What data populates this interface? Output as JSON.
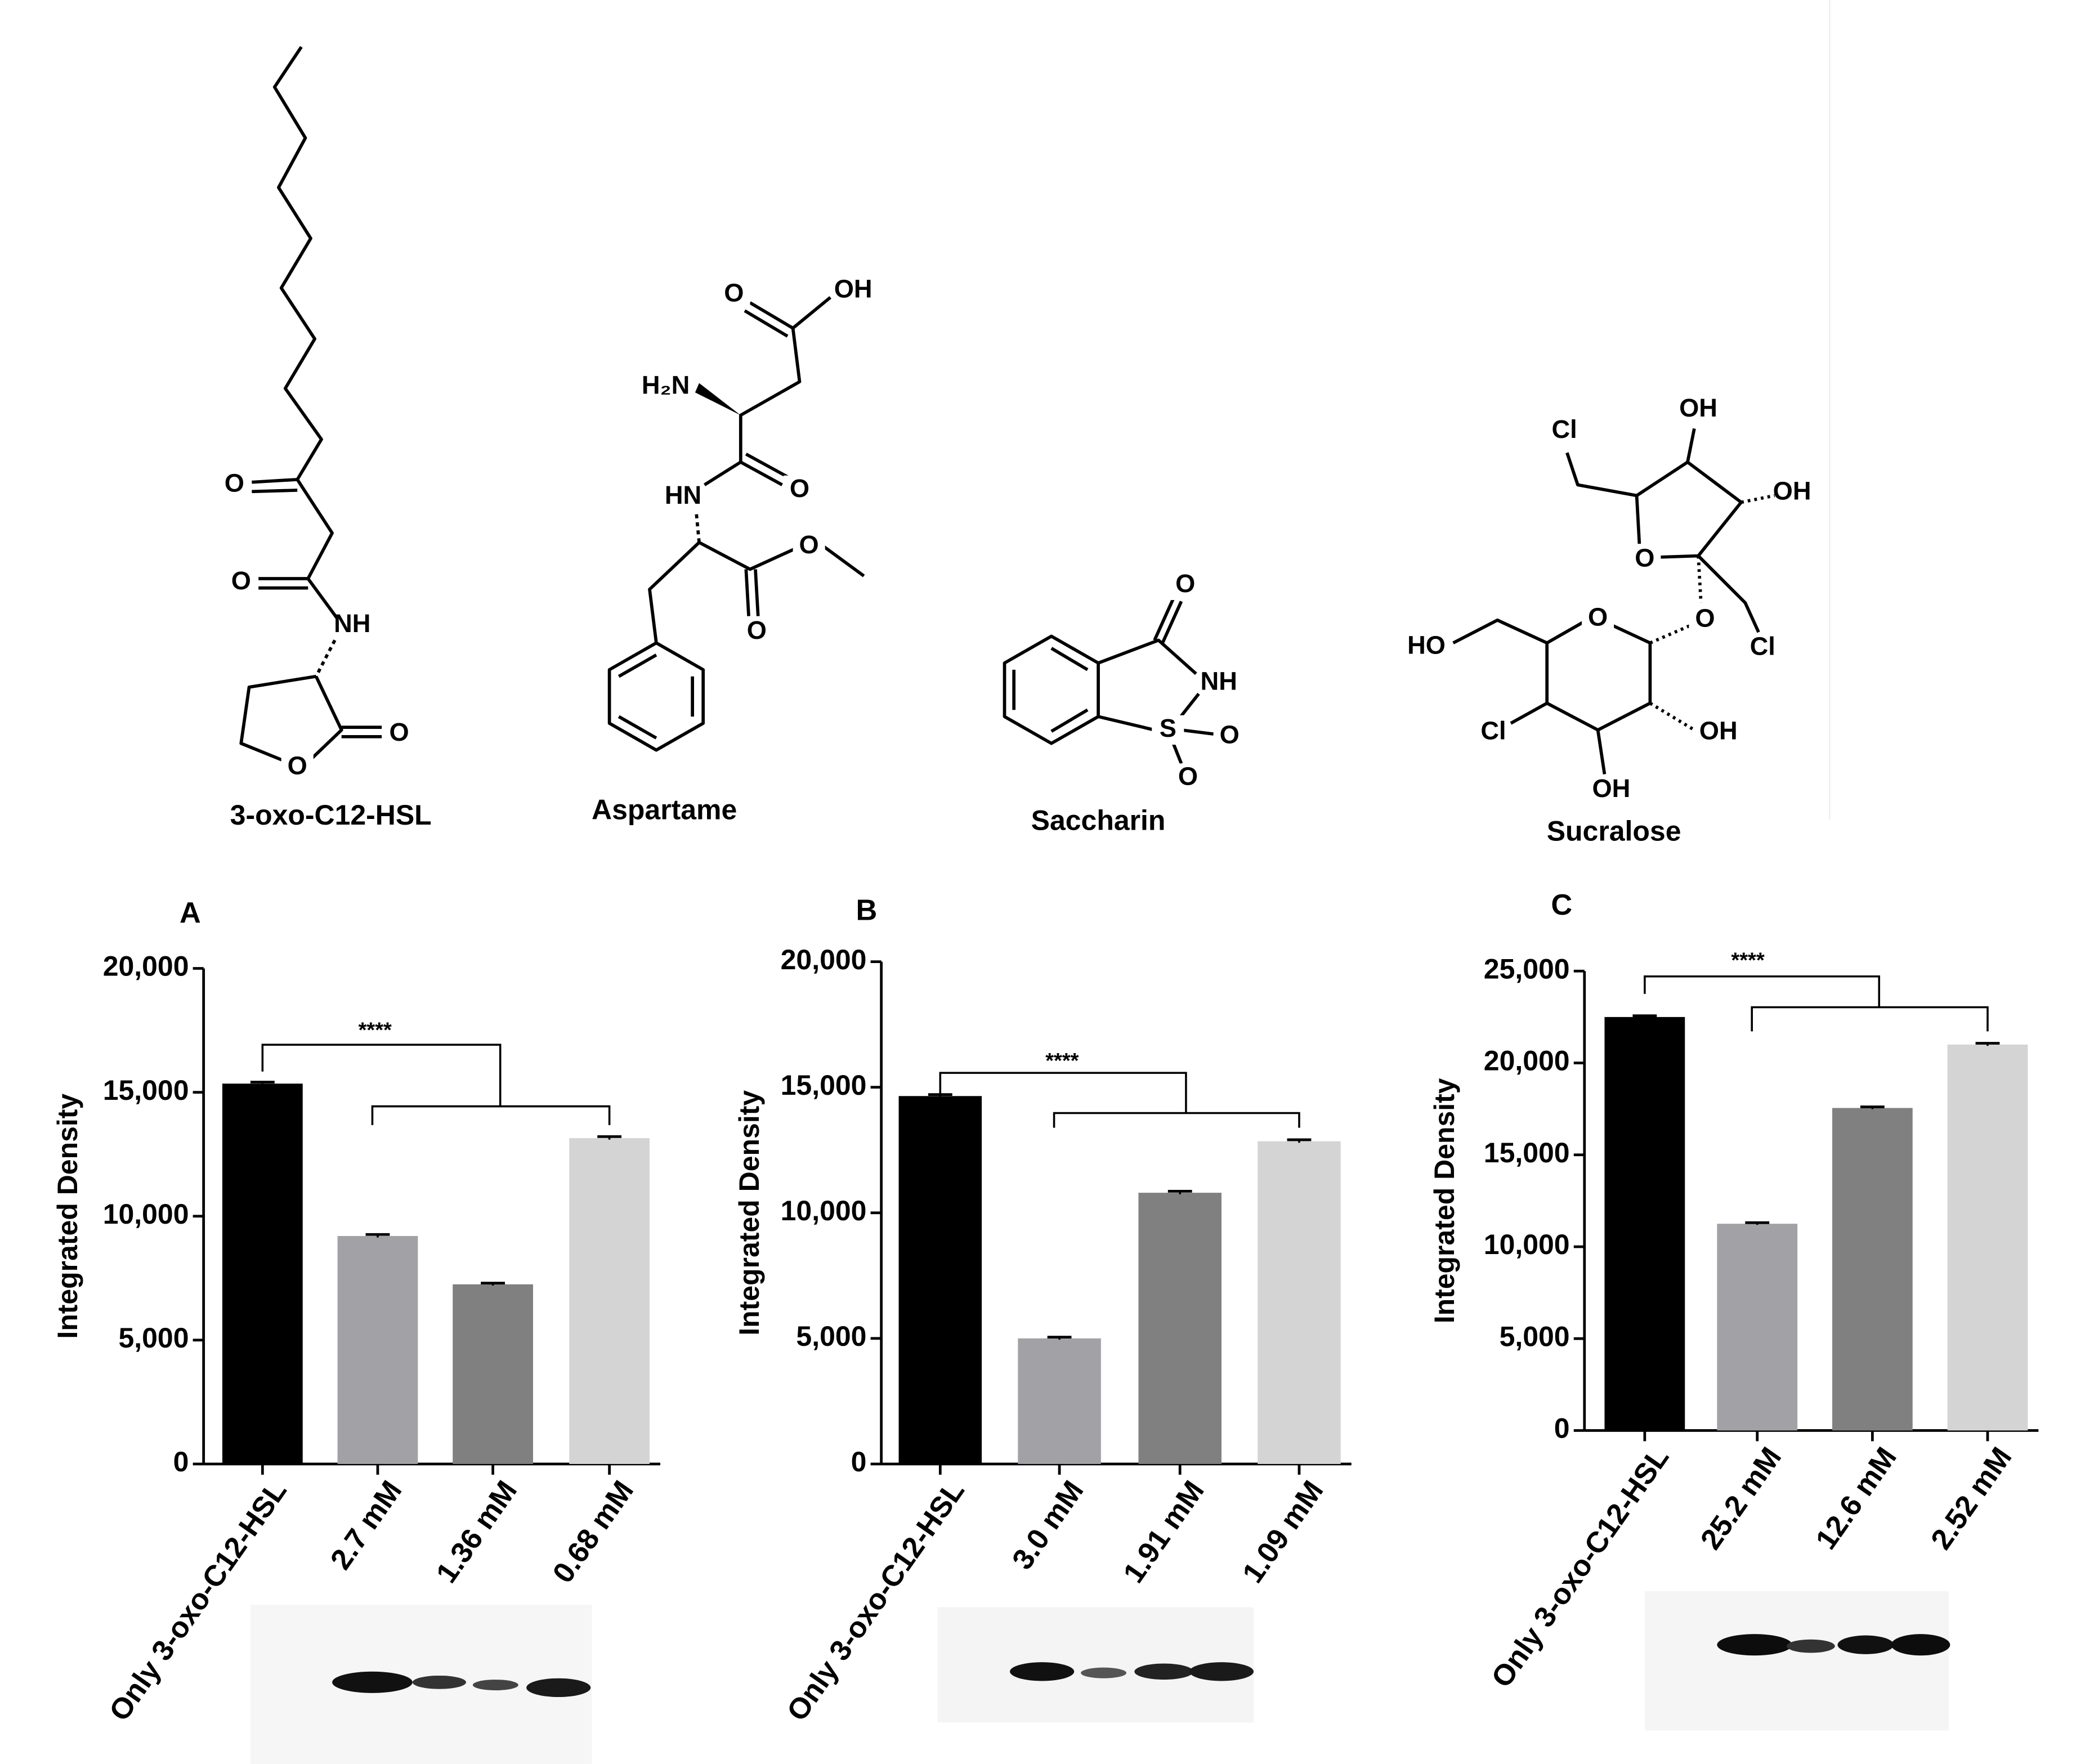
{
  "structures": [
    {
      "name": "3-oxo-C12-HSL",
      "atoms": [
        "O",
        "O",
        "NH",
        "O",
        "O"
      ]
    },
    {
      "name": "Aspartame",
      "atoms": [
        "O",
        "OH",
        "H₂N",
        "HN",
        "O",
        "O",
        "O"
      ]
    },
    {
      "name": "Saccharin",
      "atoms": [
        "O",
        "NH",
        "S",
        "O",
        "O"
      ]
    },
    {
      "name": "Sucralose",
      "atoms": [
        "Cl",
        "OH",
        "OH",
        "O",
        "O",
        "Cl",
        "HO",
        "O",
        "Cl",
        "OH",
        "OH"
      ]
    }
  ],
  "chart_data": [
    {
      "type": "bar",
      "title": "A",
      "y_label": "Integrated Density",
      "categories": [
        "Only 3-oxo-C12-HSL",
        "2.7 mM",
        "1.36 mM",
        "0.68 mM"
      ],
      "values": [
        15350,
        9200,
        7250,
        13150
      ],
      "errors": [
        60,
        60,
        50,
        60
      ],
      "colors": [
        "#000000",
        "#a1a1a6",
        "#808080",
        "#d4d4d4"
      ],
      "ylim": [
        0,
        20000
      ],
      "yticks": [
        0,
        {
          "value": 5000,
          "label": "5,000"
        },
        {
          "value": 10000,
          "label": "10,000"
        },
        {
          "value": 15000,
          "label": "15,000"
        },
        {
          "value": 20000,
          "label": "20,000"
        }
      ],
      "annotations": [
        "****"
      ]
    },
    {
      "type": "bar",
      "title": "B",
      "y_label": "Integrated Density",
      "categories": [
        "Only 3-oxo-C12-HSL",
        "3.0 mM",
        "1.91 mM",
        "1.09 mM"
      ],
      "values": [
        14650,
        5000,
        10800,
        12850
      ],
      "errors": [
        60,
        50,
        60,
        60
      ],
      "colors": [
        "#000000",
        "#a1a1a6",
        "#808080",
        "#d4d4d4"
      ],
      "ylim": [
        0,
        20000
      ],
      "yticks": [
        0,
        {
          "value": 5000,
          "label": "5,000"
        },
        {
          "value": 10000,
          "label": "10,000"
        },
        {
          "value": 15000,
          "label": "15,000"
        },
        {
          "value": 20000,
          "label": "20,000"
        }
      ],
      "annotations": [
        "****"
      ]
    },
    {
      "type": "bar",
      "title": "C",
      "y_label": "Integrated Density",
      "categories": [
        "Only 3-oxo-C12-HSL",
        "25.2 mM",
        "12.6 mM",
        "2.52 mM"
      ],
      "values": [
        22500,
        11250,
        17550,
        21000
      ],
      "errors": [
        70,
        60,
        60,
        70
      ],
      "colors": [
        "#000000",
        "#a1a1a6",
        "#808080",
        "#d4d4d4"
      ],
      "ylim": [
        0,
        25000
      ],
      "yticks": [
        0,
        {
          "value": 5000,
          "label": "5,000"
        },
        {
          "value": 10000,
          "label": "10,000"
        },
        {
          "value": 15000,
          "label": "15,000"
        },
        {
          "value": 20000,
          "label": "20,000"
        },
        {
          "value": 25000,
          "label": "25,000"
        }
      ],
      "annotations": [
        "****"
      ]
    }
  ]
}
